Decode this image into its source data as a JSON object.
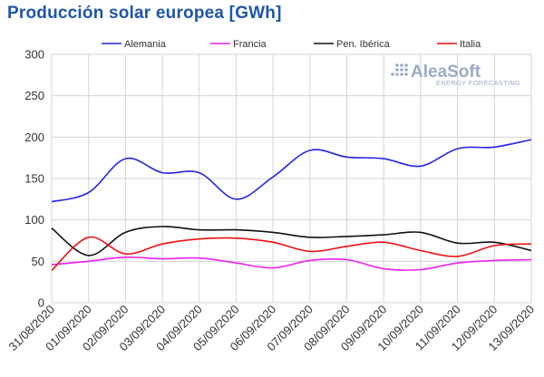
{
  "chart_data": {
    "type": "line",
    "title": "Producción solar europea [GWh]",
    "categories": [
      "31/08/2020",
      "01/09/2020",
      "02/09/2020",
      "03/09/2020",
      "04/09/2020",
      "05/09/2020",
      "06/09/2020",
      "07/09/2020",
      "08/09/2020",
      "09/09/2020",
      "10/09/2020",
      "11/09/2020",
      "12/09/2020",
      "13/09/2020"
    ],
    "ylim": [
      0,
      300
    ],
    "yticks": [
      0,
      50,
      100,
      150,
      200,
      250,
      300
    ],
    "grid": true,
    "legend_position": "top",
    "series": [
      {
        "name": "Alemania",
        "color": "#2424e6",
        "values": [
          122,
          133,
          174,
          157,
          157,
          125,
          152,
          184,
          176,
          174,
          165,
          186,
          188,
          197
        ]
      },
      {
        "name": "Francia",
        "color": "#ee22ee",
        "values": [
          46,
          50,
          55,
          53,
          54,
          48,
          42,
          51,
          52,
          41,
          40,
          48,
          51,
          52
        ]
      },
      {
        "name": "Pen. Ibérica",
        "color": "#111111",
        "values": [
          90,
          57,
          85,
          92,
          88,
          88,
          85,
          79,
          80,
          82,
          85,
          72,
          73,
          63
        ]
      },
      {
        "name": "Italia",
        "color": "#ee1111",
        "values": [
          39,
          79,
          59,
          71,
          77,
          78,
          73,
          62,
          68,
          73,
          63,
          56,
          69,
          71
        ]
      }
    ]
  },
  "logo": {
    "main": "AleaSoft",
    "sub": "ENERGY FORECASTING"
  }
}
